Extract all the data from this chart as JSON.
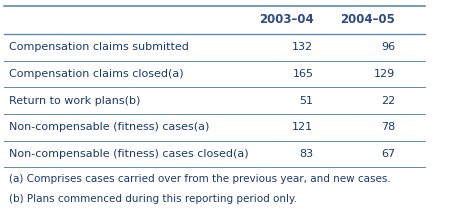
{
  "col_headers": [
    "",
    "2003–04",
    "2004–05"
  ],
  "rows": [
    [
      "Compensation claims submitted",
      "132",
      "96"
    ],
    [
      "Compensation claims closed(a)",
      "165",
      "129"
    ],
    [
      "Return to work plans(b)",
      "51",
      "22"
    ],
    [
      "Non-compensable (fitness) cases(a)",
      "121",
      "78"
    ],
    [
      "Non-compensable (fitness) cases closed(a)",
      "83",
      "67"
    ]
  ],
  "footnotes": [
    "(a) Comprises cases carried over from the previous year, and new cases.",
    "(b) Plans commenced during this reporting period only."
  ],
  "header_color": "#2E4A87",
  "line_color": "#5B8DB8",
  "text_color": "#1a3a6b",
  "bg_color": "#ffffff",
  "footnote_color": "#1a3a6b",
  "header_fontsize": 8.5,
  "body_fontsize": 8.0,
  "footnote_fontsize": 7.5
}
